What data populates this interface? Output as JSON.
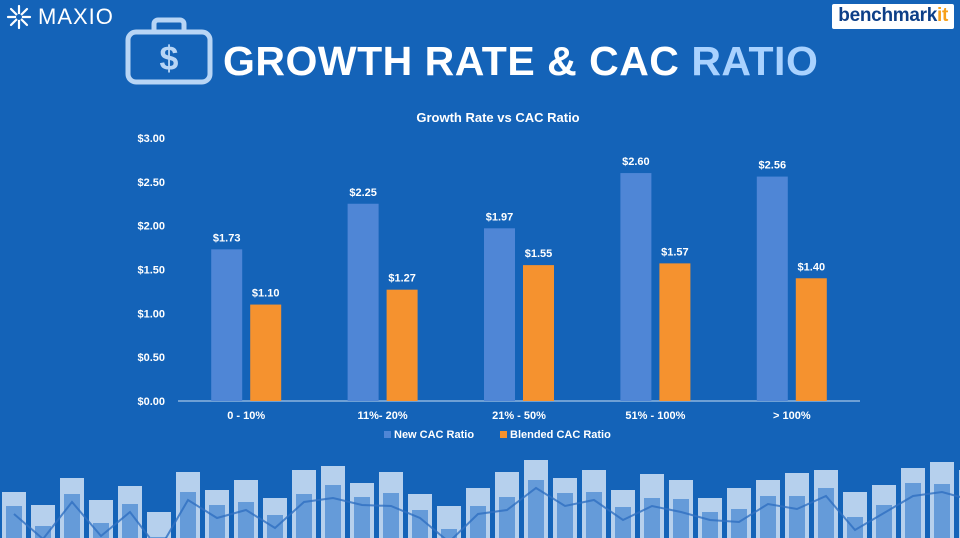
{
  "header": {
    "brand_left": "MAXIO",
    "brand_right_main": "benchmark",
    "brand_right_accent": "it",
    "title_main": "GROWTH RATE & CAC",
    "title_accent": "RATIO",
    "icon": "dollar-briefcase-icon"
  },
  "colors": {
    "background": "#1463b8",
    "series_new": "#4f86d6",
    "series_blended": "#f5922f",
    "title_accent": "#a9d2ff"
  },
  "chart_data": {
    "type": "bar",
    "title": "Growth Rate vs CAC Ratio",
    "categories": [
      "0 - 10%",
      "11%- 20%",
      "21% - 50%",
      "51% - 100%",
      "> 100%"
    ],
    "series": [
      {
        "name": "New CAC Ratio",
        "values": [
          1.73,
          2.25,
          1.97,
          2.6,
          2.56
        ],
        "labels": [
          "$1.73",
          "$2.25",
          "$1.97",
          "$2.60",
          "$2.56"
        ]
      },
      {
        "name": "Blended CAC Ratio",
        "values": [
          1.1,
          1.27,
          1.55,
          1.57,
          1.4
        ],
        "labels": [
          "$1.10",
          "$1.27",
          "$1.55",
          "$1.57",
          "$1.40"
        ]
      }
    ],
    "yticks": [
      "$0.00",
      "$0.50",
      "$1.00",
      "$1.50",
      "$2.00",
      "$2.50",
      "$3.00"
    ],
    "ylim": [
      0,
      3
    ],
    "grid": false,
    "legend": "bottom-center"
  }
}
